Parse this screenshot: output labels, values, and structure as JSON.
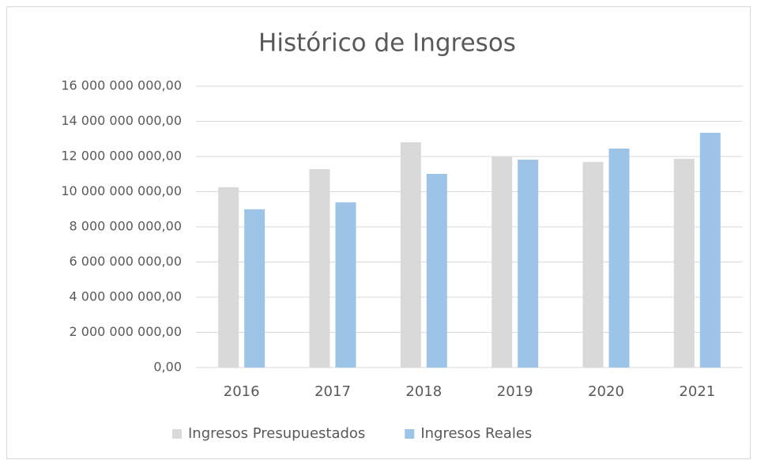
{
  "chart_data": {
    "type": "bar",
    "title": "Histórico de Ingresos",
    "categories": [
      "2016",
      "2017",
      "2018",
      "2019",
      "2020",
      "2021"
    ],
    "series": [
      {
        "name": "Ingresos Presupuestados",
        "color": "#d9d9d9",
        "values": [
          10250000000,
          11280000000,
          12810000000,
          12000000000,
          11690000000,
          11870000000
        ]
      },
      {
        "name": "Ingresos Reales",
        "color": "#9dc3e6",
        "values": [
          9000000000,
          9390000000,
          11010000000,
          11820000000,
          12450000000,
          13350000000
        ]
      }
    ],
    "ylim": [
      0,
      16000000000
    ],
    "yticks": [
      {
        "value": 0,
        "label": "0,00"
      },
      {
        "value": 2000000000,
        "label": "2 000 000 000,00"
      },
      {
        "value": 4000000000,
        "label": "4 000 000 000,00"
      },
      {
        "value": 6000000000,
        "label": "6 000 000 000,00"
      },
      {
        "value": 8000000000,
        "label": "8 000 000 000,00"
      },
      {
        "value": 10000000000,
        "label": "10 000 000 000,00"
      },
      {
        "value": 12000000000,
        "label": "12 000 000 000,00"
      },
      {
        "value": 14000000000,
        "label": "14 000 000 000,00"
      },
      {
        "value": 16000000000,
        "label": "16 000 000 000,00"
      }
    ],
    "grid": true,
    "legend": "bottom"
  }
}
